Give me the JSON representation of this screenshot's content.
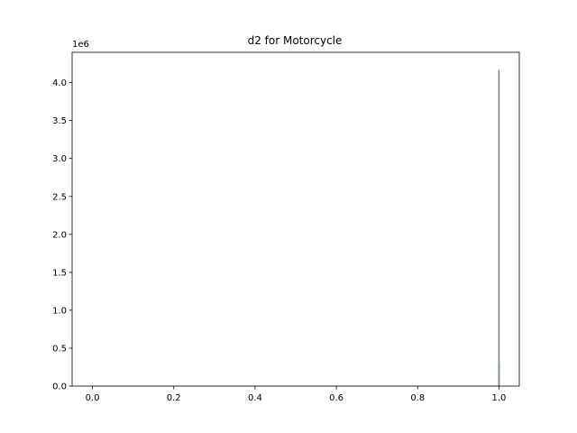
{
  "chart_data": {
    "type": "histogram",
    "title": "d2 for Motorcycle",
    "xlabel": "",
    "ylabel": "",
    "y_offset_label": "1e6",
    "xlim": [
      -0.05,
      1.05
    ],
    "ylim": [
      0,
      4.4
    ],
    "grid": false,
    "legend": "none",
    "x_ticks": [
      "0.0",
      "0.2",
      "0.4",
      "0.6",
      "0.8",
      "1.0"
    ],
    "y_ticks": [
      "0.0",
      "0.5",
      "1.0",
      "1.5",
      "2.0",
      "2.5",
      "3.0",
      "3.5",
      "4.0"
    ],
    "series": [
      {
        "color": "#808080",
        "points": [
          {
            "x": 0.0,
            "y": 0.0
          },
          {
            "x": 1.0,
            "y": 4.17
          }
        ]
      },
      {
        "color": "#6a8aa0",
        "points": [
          {
            "x": 1.0,
            "y": 0.3
          }
        ]
      },
      {
        "color": "#b8a000",
        "points": [
          {
            "x": 0.0,
            "y": 0.0
          },
          {
            "x": 1.0,
            "y": 0.0
          }
        ]
      }
    ]
  }
}
